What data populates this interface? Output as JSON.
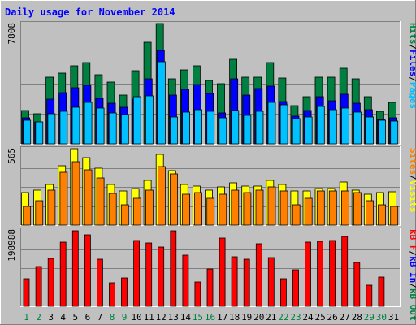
{
  "chart_data": {
    "type": "bar",
    "title": "Daily usage for November 2014",
    "categories": [
      "1",
      "2",
      "3",
      "4",
      "5",
      "6",
      "7",
      "8",
      "9",
      "10",
      "11",
      "12",
      "13",
      "14",
      "15",
      "16",
      "17",
      "18",
      "19",
      "20",
      "21",
      "22",
      "23",
      "24",
      "25",
      "26",
      "27",
      "28",
      "29",
      "30",
      "31"
    ],
    "weekend_days": [
      "1",
      "2",
      "8",
      "9",
      "15",
      "16",
      "22",
      "23",
      "29",
      "30"
    ],
    "panels": [
      {
        "id": "top",
        "scale_label": "7808",
        "ylim": [
          0,
          7808
        ],
        "right_label": [
          {
            "text": "Hits",
            "color": "#008040"
          },
          {
            "text": "/",
            "color": "#000000"
          },
          {
            "text": "Files",
            "color": "#0000ff"
          },
          {
            "text": "/",
            "color": "#000000"
          },
          {
            "text": "Pages",
            "color": "#00c0ff"
          }
        ],
        "series": [
          {
            "name": "Hits",
            "color": "#008040",
            "values": [
              2150,
              1950,
              4300,
              4600,
              5050,
              5300,
              4500,
              4000,
              3150,
              4750,
              6600,
              7808,
              4200,
              4800,
              5050,
              4100,
              3900,
              5500,
              4350,
              4350,
              5300,
              4250,
              2500,
              3050,
              4300,
              4300,
              4900,
              4200,
              3050,
              2100,
              2700
            ]
          },
          {
            "name": "Files",
            "color": "#0000ff",
            "values": [
              1700,
              1450,
              2900,
              3300,
              3650,
              3800,
              2950,
              2650,
              2350,
              2900,
              4200,
              6050,
              3150,
              3550,
              3850,
              3250,
              2000,
              4200,
              3150,
              3600,
              3750,
              2750,
              1800,
              2150,
              3050,
              2800,
              3200,
              2650,
              2200,
              1600,
              1700
            ]
          },
          {
            "name": "Pages",
            "color": "#00c0ff",
            "values": [
              1550,
              1400,
              1950,
              2100,
              2350,
              2700,
              2300,
              2000,
              1900,
              3050,
              3100,
              5350,
              1750,
              2050,
              2200,
              2100,
              1700,
              2150,
              1850,
              2100,
              2700,
              2550,
              1650,
              1750,
              2450,
              2200,
              2300,
              2050,
              1750,
              1550,
              1500
            ]
          }
        ]
      },
      {
        "id": "middle",
        "scale_label": "565",
        "ylim": [
          0,
          565
        ],
        "right_label": [
          {
            "text": "Sites",
            "color": "#ff8000"
          },
          {
            "text": "/",
            "color": "#000000"
          },
          {
            "text": "Visits",
            "color": "#ffff00"
          }
        ],
        "series": [
          {
            "name": "Visits",
            "color": "#ffff00",
            "values": [
              240,
              260,
              300,
              440,
              565,
              500,
              420,
              300,
              250,
              270,
              330,
              525,
              400,
              300,
              290,
              260,
              280,
              310,
              290,
              290,
              330,
              300,
              250,
              250,
              270,
              270,
              320,
              260,
              230,
              240,
              245
            ]
          },
          {
            "name": "Sites",
            "color": "#ff8000",
            "values": [
              140,
              180,
              260,
              390,
              470,
              410,
              350,
              235,
              150,
              200,
              260,
              430,
              380,
              230,
              240,
              200,
              230,
              260,
              240,
              260,
              280,
              250,
              150,
              200,
              250,
              250,
              250,
              240,
              180,
              150,
              140
            ]
          }
        ]
      },
      {
        "id": "bottom",
        "scale_label": "198988",
        "ylim": [
          0,
          198988
        ],
        "right_label": [
          {
            "text": "kB F",
            "color": "#ff0000"
          },
          {
            "text": "/",
            "color": "#000000"
          },
          {
            "text": "kB In",
            "color": "#0000ff"
          },
          {
            "text": "/",
            "color": "#000000"
          },
          {
            "text": "kB Out",
            "color": "#008040"
          }
        ],
        "series": [
          {
            "name": "kB F",
            "color": "#ff0000",
            "values": [
              72000,
              103000,
              124000,
              167000,
              197000,
              186000,
              123000,
              61000,
              75000,
              171000,
              165000,
              154000,
              196000,
              133000,
              64000,
              98000,
              178000,
              129000,
              123000,
              163000,
              126000,
              72000,
              95000,
              168000,
              169000,
              171000,
              183000,
              114000,
              54000,
              76000,
              0
            ]
          }
        ]
      }
    ]
  }
}
